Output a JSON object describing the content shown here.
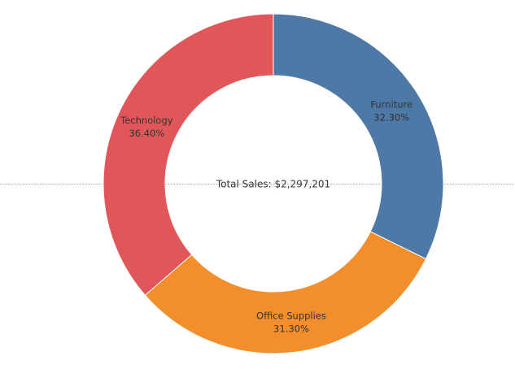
{
  "chart_data": {
    "type": "pie",
    "variant": "donut",
    "center_label": "Total Sales: $2,297,201",
    "slices": [
      {
        "name": "Furniture",
        "pct_label": "32.30%",
        "value": 32.3,
        "color": "#4e79a7"
      },
      {
        "name": "Office Supplies",
        "pct_label": "31.30%",
        "value": 31.3,
        "color": "#f28e2b"
      },
      {
        "name": "Technology",
        "pct_label": "36.40%",
        "value": 36.4,
        "color": "#e15759"
      }
    ],
    "start_angle_deg": 0,
    "direction": "clockwise",
    "legend": "none"
  }
}
